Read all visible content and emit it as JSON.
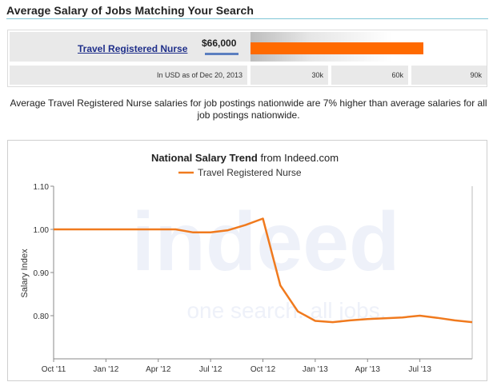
{
  "header": {
    "title": "Average Salary of Jobs Matching Your Search"
  },
  "salary": {
    "job_title": "Travel Registered Nurse",
    "value_label": "$66,000",
    "value": 66000,
    "scale_max": 90000,
    "currency_note": "In USD as of Dec 20, 2013",
    "scale_labels": [
      "30k",
      "60k",
      "90k"
    ],
    "bar_color": "#ff6a00"
  },
  "description": "Average Travel Registered Nurse salaries for job postings nationwide are 7% higher than average salaries for all job postings nationwide.",
  "watermark": {
    "brand": "indeed",
    "tagline": "one search. all jobs."
  },
  "chart_data": {
    "type": "line",
    "title_bold": "National Salary Trend",
    "title_rest": "from Indeed.com",
    "ylabel": "Salary Index",
    "xlabel": "",
    "ylim": [
      0.7,
      1.1
    ],
    "yticks": [
      1.1,
      1.0,
      0.9,
      0.8
    ],
    "ytick_labels": [
      "1.10",
      "1.00",
      "0.90",
      "0.80"
    ],
    "xtick_labels": [
      "Oct '11",
      "Jan '12",
      "Apr '12",
      "Jul '12",
      "Oct '12",
      "Jan '13",
      "Apr '13",
      "Jul '13"
    ],
    "x": [
      "Oct '11",
      "Nov '11",
      "Dec '11",
      "Jan '12",
      "Feb '12",
      "Mar '12",
      "Apr '12",
      "May '12",
      "Jun '12",
      "Jul '12",
      "Aug '12",
      "Sep '12",
      "Oct '12",
      "Nov '12",
      "Dec '12",
      "Jan '13",
      "Feb '13",
      "Mar '13",
      "Apr '13",
      "May '13",
      "Jun '13",
      "Jul '13",
      "Aug '13",
      "Sep '13",
      "Oct '13"
    ],
    "series": [
      {
        "name": "Travel Registered Nurse",
        "color": "#f07a1e",
        "values": [
          1.0,
          1.0,
          1.0,
          1.0,
          1.0,
          1.0,
          1.0,
          1.0,
          0.993,
          0.993,
          0.998,
          1.01,
          1.025,
          0.87,
          0.81,
          0.788,
          0.785,
          0.789,
          0.792,
          0.794,
          0.796,
          0.8,
          0.795,
          0.789,
          0.785
        ]
      }
    ],
    "grid": false,
    "legend_position": "top-center"
  }
}
